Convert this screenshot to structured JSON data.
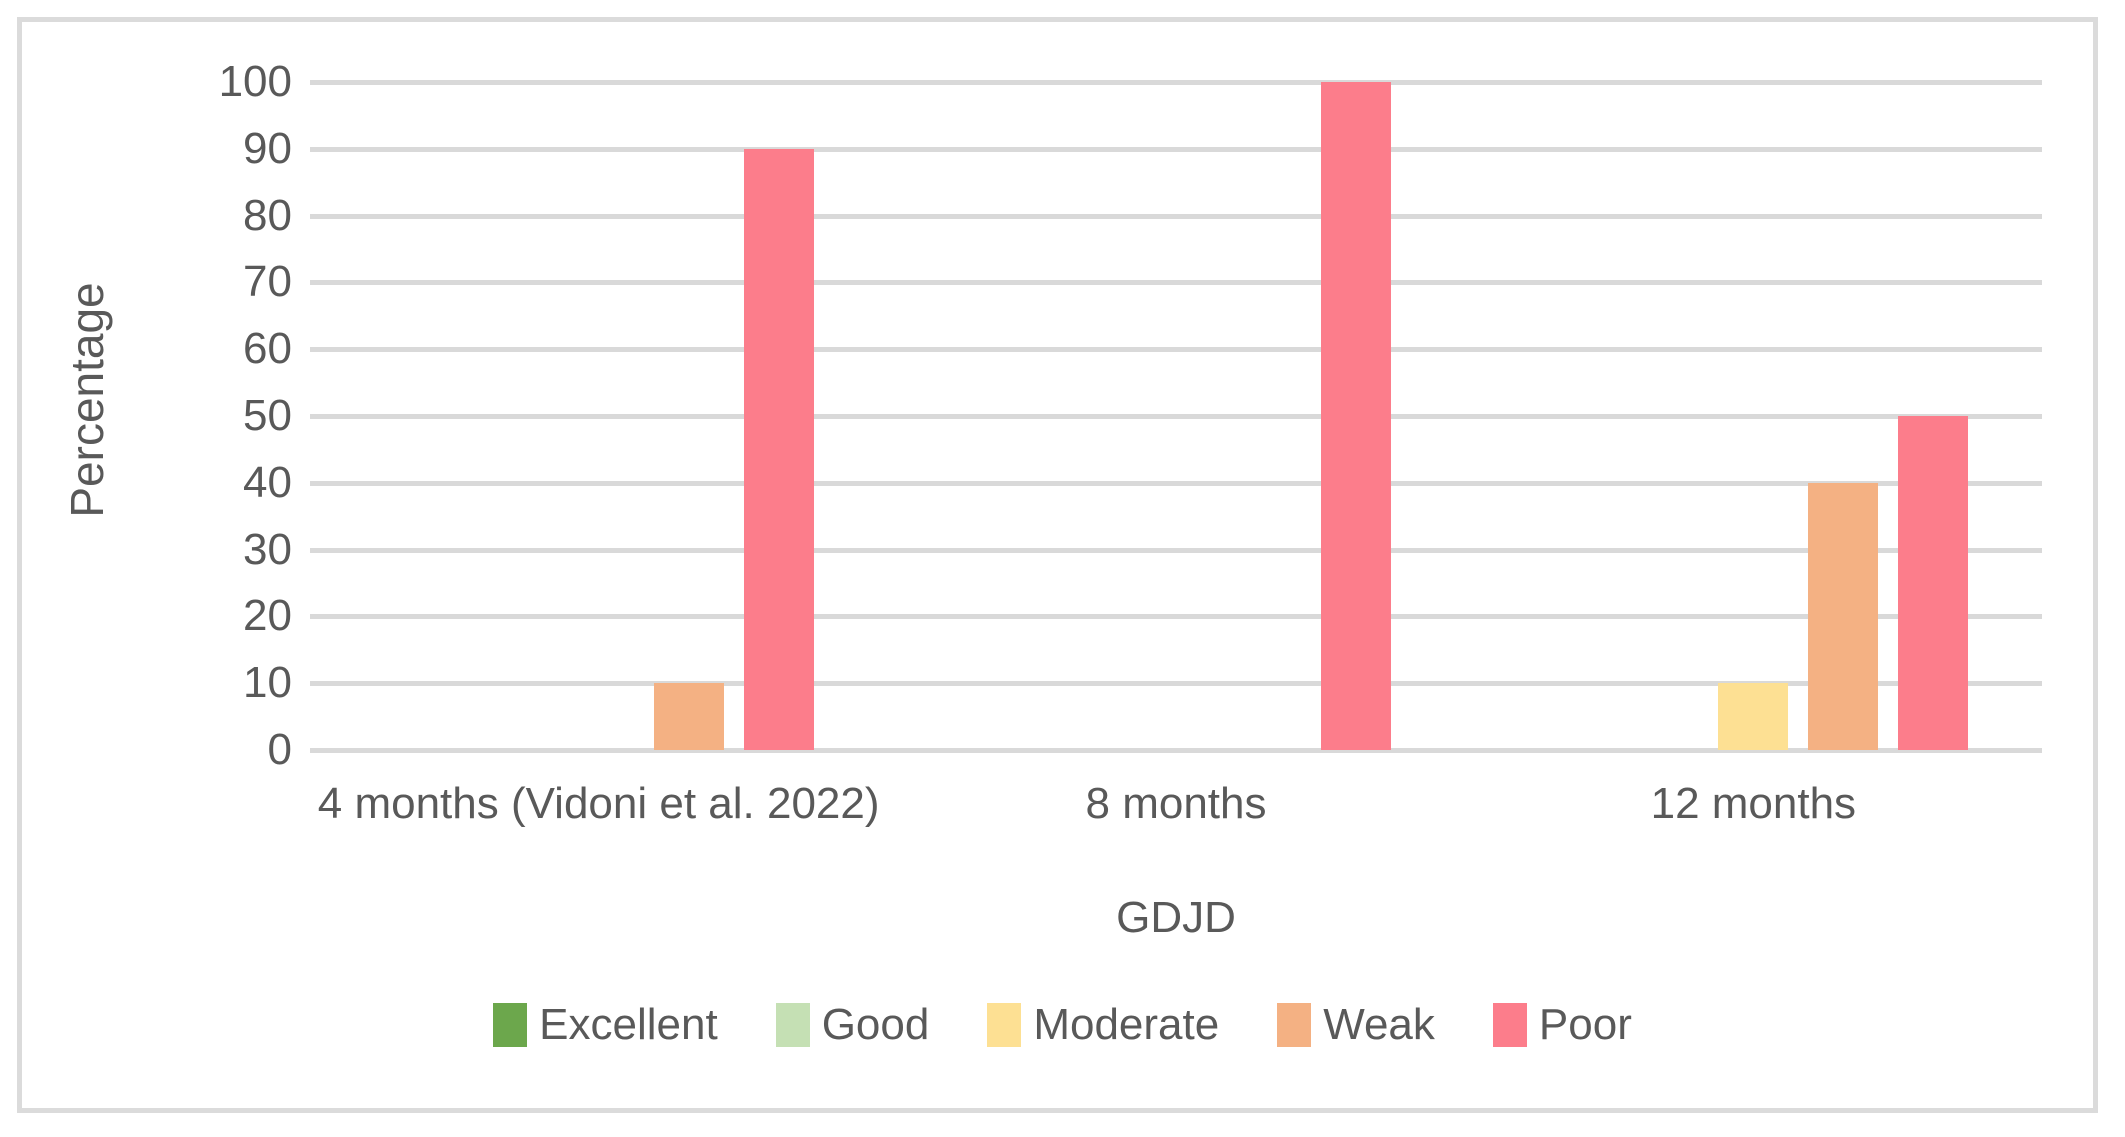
{
  "chart_data": {
    "type": "bar",
    "title": "",
    "categories": [
      "4 months (Vidoni et al. 2022)",
      "8 months",
      "12 months"
    ],
    "series": [
      {
        "name": "Excellent",
        "color": "#6CA74C",
        "values": [
          0,
          0,
          0
        ]
      },
      {
        "name": "Good",
        "color": "#C5E0B4",
        "values": [
          0,
          0,
          0
        ]
      },
      {
        "name": "Moderate",
        "color": "#FDE093",
        "values": [
          0,
          0,
          10
        ]
      },
      {
        "name": "Weak",
        "color": "#F4B183",
        "values": [
          10,
          0,
          40
        ]
      },
      {
        "name": "Poor",
        "color": "#FC7D8B",
        "values": [
          90,
          100,
          50
        ]
      }
    ],
    "xlabel": "GDJD",
    "ylabel": "Percentage",
    "ylim": [
      0,
      100
    ],
    "yticks": [
      0,
      10,
      20,
      30,
      40,
      50,
      60,
      70,
      80,
      90,
      100
    ],
    "grid": true,
    "gridline_color": "#D9D9D9",
    "frame_color": "#DBDBDB",
    "text_color": "#595959",
    "legend_position": "bottom"
  }
}
